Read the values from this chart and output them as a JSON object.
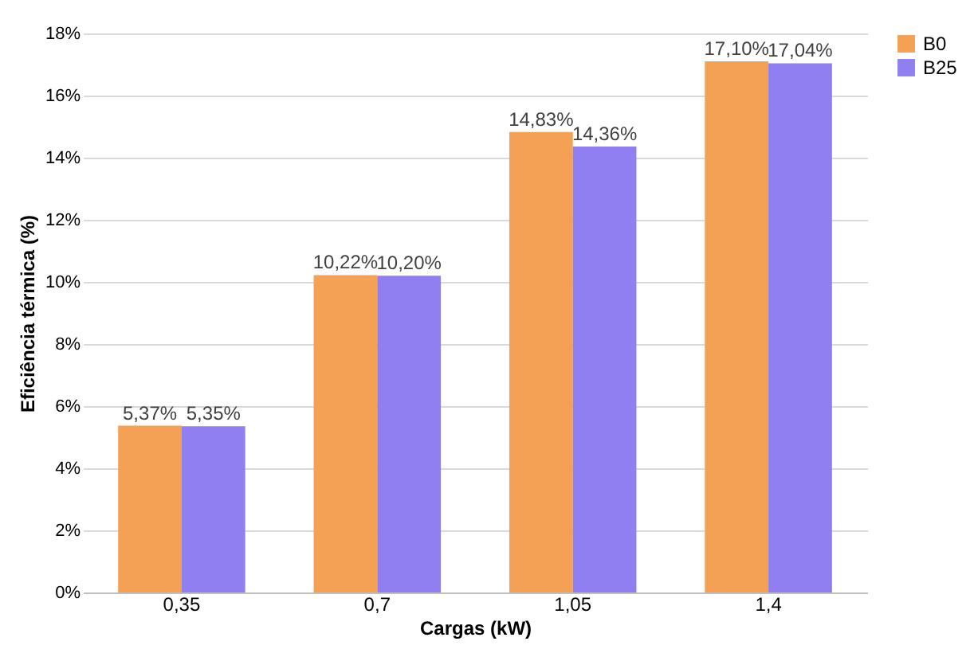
{
  "chart_data": {
    "type": "bar",
    "xlabel": "Cargas (kW)",
    "ylabel": "Eficiência térmica (%)",
    "categories": [
      "0,35",
      "0,7",
      "1,05",
      "1,4"
    ],
    "series": [
      {
        "name": "B0",
        "color": "#f4a055",
        "values": [
          5.37,
          10.22,
          14.83,
          17.1
        ],
        "value_labels": [
          "5,37%",
          "10,22%",
          "14,83%",
          "17,10%"
        ]
      },
      {
        "name": "B25",
        "color": "#8f7ff0",
        "values": [
          5.35,
          10.2,
          14.36,
          17.04
        ],
        "value_labels": [
          "5,35%",
          "10,20%",
          "14,36%",
          "17,04%"
        ]
      }
    ],
    "ylim": [
      0,
      18
    ],
    "yticks": [
      {
        "value": 0,
        "label": "0%"
      },
      {
        "value": 2,
        "label": "2%"
      },
      {
        "value": 4,
        "label": "4%"
      },
      {
        "value": 6,
        "label": "6%"
      },
      {
        "value": 8,
        "label": "8%"
      },
      {
        "value": 10,
        "label": "10%"
      },
      {
        "value": 12,
        "label": "12%"
      },
      {
        "value": 14,
        "label": "14%"
      },
      {
        "value": 16,
        "label": "16%"
      },
      {
        "value": 18,
        "label": "18%"
      }
    ],
    "grid": "y",
    "legend": "right"
  }
}
